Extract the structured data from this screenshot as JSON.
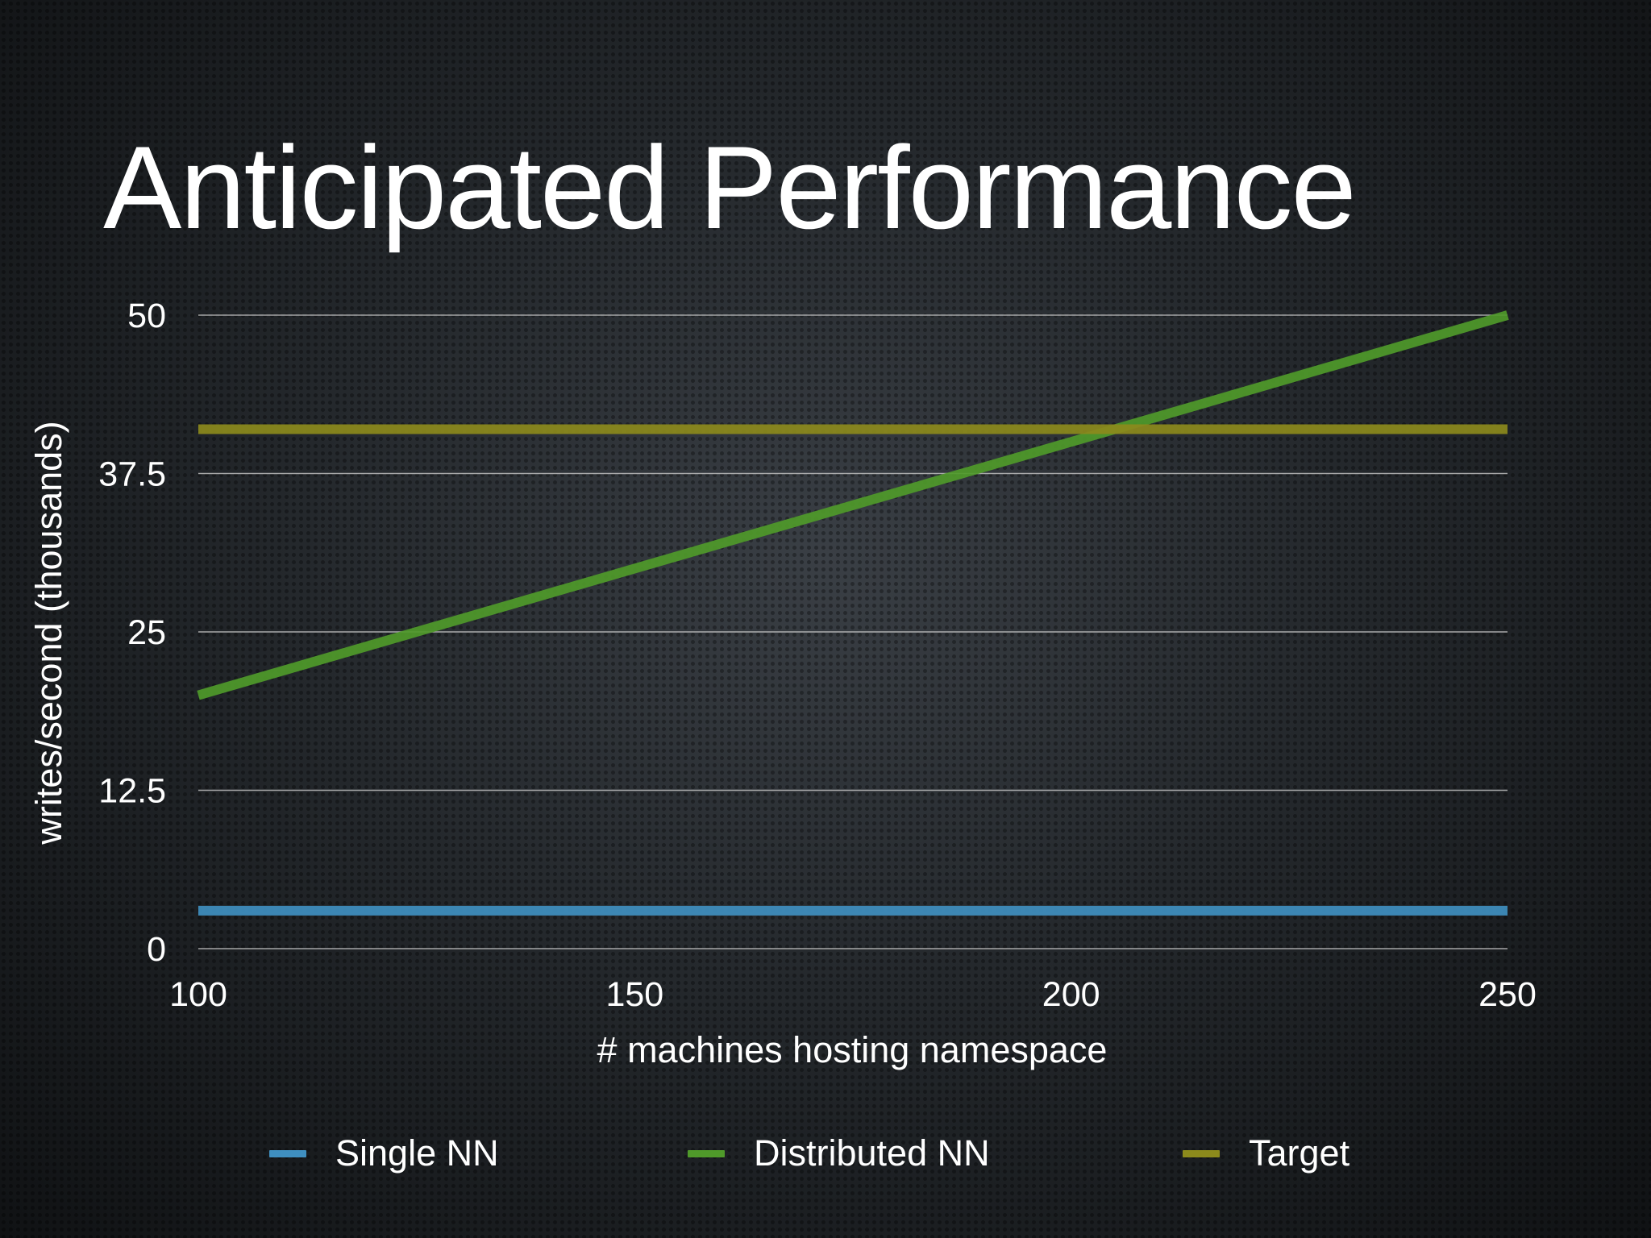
{
  "slide": {
    "title": "Anticipated Performance"
  },
  "chart_data": {
    "type": "line",
    "title": "",
    "xlabel": "# machines hosting namespace",
    "ylabel": "writes/second (thousands)",
    "xlim": [
      100,
      250
    ],
    "ylim": [
      0,
      50
    ],
    "xticks": [
      100,
      150,
      200,
      250
    ],
    "yticks": [
      0,
      12.5,
      25,
      37.5,
      50
    ],
    "xtick_labels": [
      "100",
      "150",
      "200",
      "250"
    ],
    "ytick_labels": [
      "0",
      "12.5",
      "25",
      "37.5",
      "50"
    ],
    "grid": "horizontal",
    "legend": "bottom",
    "series": [
      {
        "name": "Single NN",
        "color": "#3f8fc0",
        "x": [
          100,
          250
        ],
        "y": [
          3,
          3
        ]
      },
      {
        "name": "Distributed NN",
        "color": "#4f9a2a",
        "x": [
          100,
          250
        ],
        "y": [
          20,
          50
        ]
      },
      {
        "name": "Target",
        "color": "#8c8a1c",
        "x": [
          100,
          250
        ],
        "y": [
          41,
          41
        ]
      }
    ]
  }
}
